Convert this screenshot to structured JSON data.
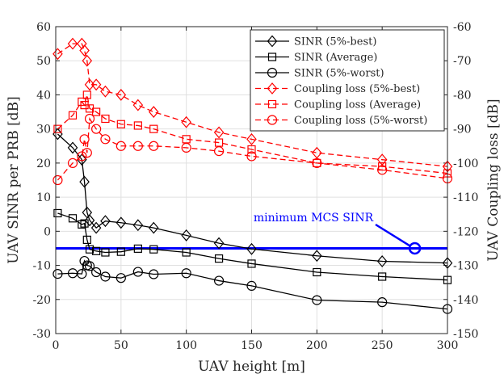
{
  "chart_data": {
    "type": "line",
    "xlabel": "UAV height [m]",
    "ylabel": "UAV SINR per PRB [dB]",
    "y2label": "UAV Coupling loss [dB]",
    "xlim": [
      0,
      300
    ],
    "ylim": [
      -30,
      60
    ],
    "y2lim": [
      -150,
      -60
    ],
    "xticks": [
      0,
      50,
      100,
      150,
      200,
      250,
      300
    ],
    "yticks": [
      -30,
      -20,
      -10,
      0,
      10,
      20,
      30,
      40,
      50,
      60
    ],
    "y2ticks": [
      -150,
      -140,
      -130,
      -120,
      -110,
      -100,
      -90,
      -80,
      -70,
      -60
    ],
    "grid": true,
    "legend_position": "top-right",
    "x": [
      1.5,
      13,
      20,
      22,
      24,
      26,
      31,
      38,
      50,
      63,
      75,
      100,
      125,
      150,
      200,
      250,
      300
    ],
    "series": [
      {
        "name": "SINR (5%-best)",
        "axis": "left",
        "color": "#000000",
        "dash": "solid",
        "marker": "diamond",
        "values": [
          28.5,
          24.5,
          21.0,
          14.5,
          5.5,
          3.2,
          1.0,
          3.0,
          2.5,
          1.8,
          1.0,
          -1.2,
          -3.5,
          -5.2,
          -7.2,
          -8.8,
          -9.3
        ]
      },
      {
        "name": "SINR (Average)",
        "axis": "left",
        "color": "#000000",
        "dash": "solid",
        "marker": "square",
        "values": [
          5.3,
          3.8,
          2.0,
          2.3,
          -2.5,
          -5.3,
          -5.8,
          -6.2,
          -6.0,
          -5.1,
          -5.3,
          -6.2,
          -8.0,
          -9.5,
          -12.0,
          -13.3,
          -14.3
        ]
      },
      {
        "name": "SINR (5%-worst)",
        "axis": "left",
        "color": "#000000",
        "dash": "solid",
        "marker": "circle",
        "values": [
          -12.5,
          -12.3,
          -12.5,
          -8.7,
          -10.0,
          -10.2,
          -12.0,
          -13.3,
          -13.7,
          -11.9,
          -12.6,
          -12.3,
          -14.5,
          -16.0,
          -20.2,
          -20.8,
          -22.8
        ]
      },
      {
        "name": "Coupling loss (5%-best)",
        "axis": "right",
        "color": "#ff0000",
        "dash": "dashed",
        "marker": "diamond",
        "values": [
          -68,
          -65,
          -65,
          -67,
          -70,
          -77,
          -77,
          -79,
          -80,
          -83,
          -85,
          -88,
          -91,
          -93,
          -97,
          -99,
          -101
        ]
      },
      {
        "name": "Coupling loss (Average)",
        "axis": "right",
        "color": "#ff0000",
        "dash": "dashed",
        "marker": "square",
        "values": [
          -90,
          -86,
          -82,
          -83,
          -80,
          -84,
          -85,
          -87,
          -88.6,
          -89,
          -90,
          -93,
          -94,
          -96,
          -100,
          -101,
          -103
        ]
      },
      {
        "name": "Coupling loss (5%-worst)",
        "axis": "right",
        "color": "#ff0000",
        "dash": "dashed",
        "marker": "circle",
        "values": [
          -105,
          -100,
          -98,
          -93,
          -97,
          -87,
          -90,
          -93,
          -95,
          -95,
          -95,
          -95.5,
          -96.5,
          -98,
          -100,
          -102,
          -104.5
        ]
      }
    ],
    "reference_line": {
      "label": "minimum MCS SINR",
      "y": -5,
      "axis": "left",
      "color": "#0000ff",
      "marker_x": 275
    }
  }
}
